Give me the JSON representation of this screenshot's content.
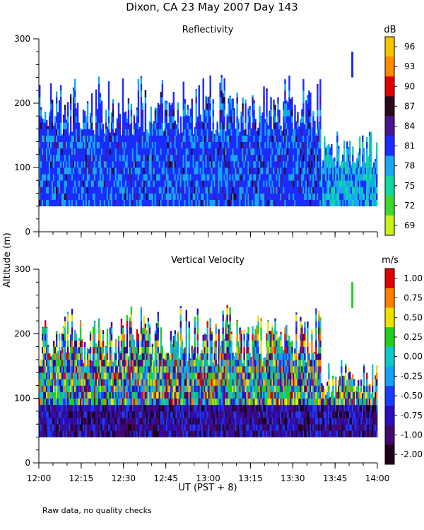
{
  "figure": {
    "title": "Dixon, CA 23 May 2007  Day 143",
    "ylabel": "Altitude (m)",
    "xlabel": "UT  (PST + 8)",
    "note": "Raw data, no quality checks"
  },
  "chart_data": [
    {
      "type": "heatmap",
      "title": "Reflectivity",
      "xlabel": "UT  (PST + 8)",
      "ylabel": "Altitude (m)",
      "x_ticks": [
        "12:00",
        "12:15",
        "12:30",
        "12:45",
        "13:00",
        "13:15",
        "13:30",
        "13:45",
        "14:00"
      ],
      "xlim": [
        "12:00",
        "14:00"
      ],
      "y_ticks": [
        0,
        100,
        200,
        300
      ],
      "ylim": [
        0,
        300
      ],
      "colorbar_unit": "dB",
      "colorbar_ticks": [
        "96",
        "93",
        "90",
        "87",
        "84",
        "81",
        "78",
        "75",
        "72",
        "69"
      ],
      "colorbar_colors": [
        "#f5c400",
        "#ff8c00",
        "#e00000",
        "#2a0a1e",
        "#4a1490",
        "#1a2cff",
        "#18a8f0",
        "#10d8a0",
        "#40d830",
        "#c8f020"
      ],
      "data_extent_altitude": [
        40,
        260
      ],
      "dominant_values": [
        "81",
        "78"
      ]
    },
    {
      "type": "heatmap",
      "title": "Vertical Velocity",
      "xlabel": "UT  (PST + 8)",
      "ylabel": "Altitude (m)",
      "x_ticks": [
        "12:00",
        "12:15",
        "12:30",
        "12:45",
        "13:00",
        "13:15",
        "13:30",
        "13:45",
        "14:00"
      ],
      "xlim": [
        "12:00",
        "14:00"
      ],
      "y_ticks": [
        0,
        100,
        200,
        300
      ],
      "ylim": [
        0,
        300
      ],
      "colorbar_unit": "m/s",
      "colorbar_ticks": [
        "1.00",
        "0.75",
        "0.50",
        "0.25",
        "0.00",
        "-0.25",
        "-0.50",
        "-0.75",
        "-1.00",
        "-2.00"
      ],
      "colorbar_colors": [
        "#e00000",
        "#ff8000",
        "#f0e000",
        "#20d020",
        "#10c8c8",
        "#18a0f0",
        "#1a3cff",
        "#2a10c0",
        "#400870",
        "#200018"
      ],
      "data_extent_altitude": [
        40,
        260
      ]
    }
  ]
}
